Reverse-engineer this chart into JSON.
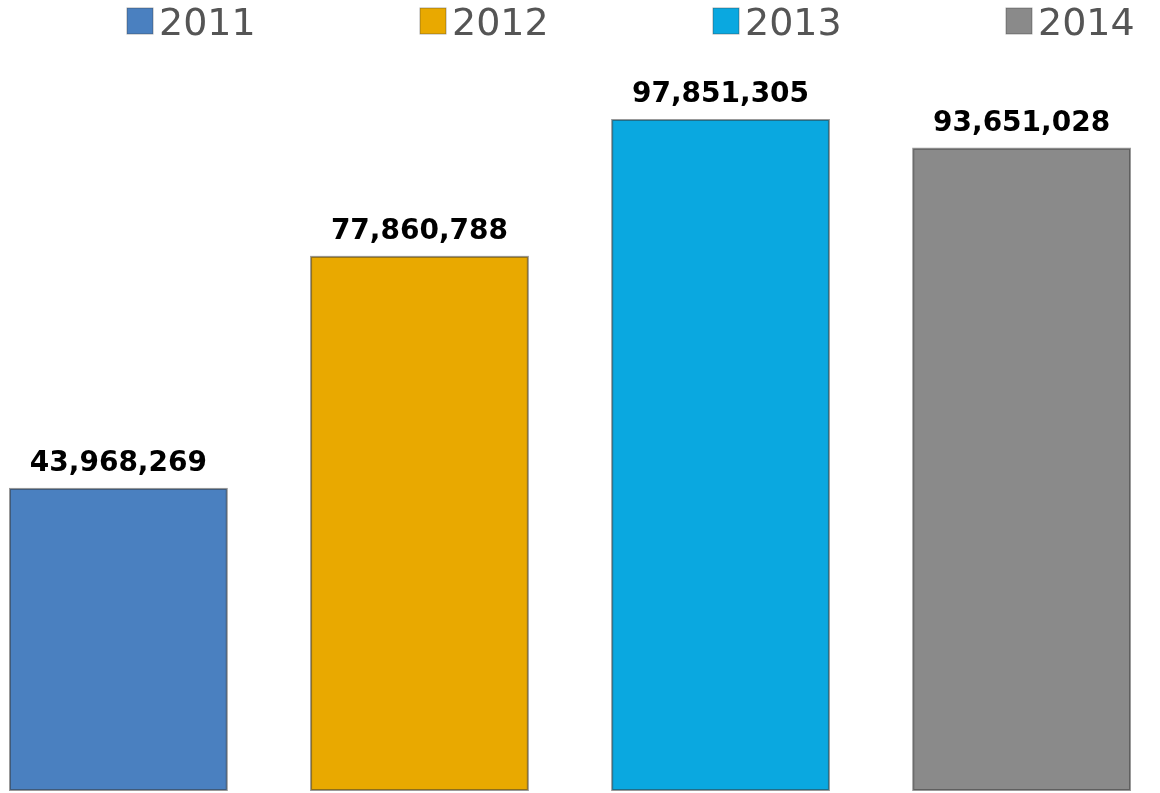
{
  "chart_data": {
    "type": "bar",
    "categories": [
      null,
      null,
      null,
      null
    ],
    "stacked": true,
    "legend": "top",
    "series": [
      {
        "name": "2011",
        "color": "#4a80c0",
        "values": [
          43968269,
          null,
          null,
          null
        ],
        "value_labels": [
          "43,968,269",
          null,
          null,
          null
        ]
      },
      {
        "name": "2012",
        "color": "#e9a900",
        "values": [
          null,
          77860788,
          null,
          null
        ],
        "value_labels": [
          null,
          "77,860,788",
          null,
          null
        ]
      },
      {
        "name": "2013",
        "color": "#0aa8e0",
        "values": [
          null,
          null,
          97851305,
          null
        ],
        "value_labels": [
          null,
          null,
          "97,851,305",
          null
        ]
      },
      {
        "name": "2014",
        "color": "#8a8a8a",
        "values": [
          null,
          null,
          null,
          93651028
        ],
        "value_labels": [
          null,
          null,
          null,
          "93,651,028"
        ]
      }
    ]
  }
}
